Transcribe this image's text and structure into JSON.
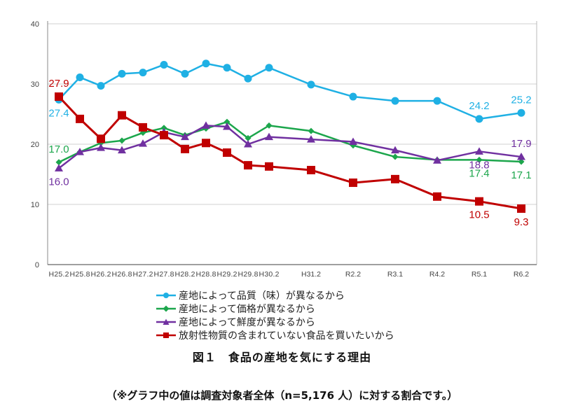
{
  "chart_data": {
    "type": "line",
    "categories": [
      "H25.2",
      "H25.8",
      "H26.2",
      "H26.8",
      "H27.2",
      "H27.8",
      "H28.2",
      "H28.8",
      "H29.2",
      "H29.8",
      "H30.2",
      "H31.2",
      "R2.2",
      "R3.1",
      "R4.2",
      "R5.1",
      "R6.2"
    ],
    "ylim": [
      0,
      40
    ],
    "yticks": [
      0,
      10,
      20,
      30,
      40
    ],
    "grid": true,
    "legend_position": "bottom",
    "series": [
      {
        "name": "産地によって品質（味）が異なるから",
        "color": "#1fb0e4",
        "marker": "circle",
        "values": [
          27.4,
          31.1,
          29.7,
          31.7,
          31.9,
          33.2,
          31.7,
          33.4,
          32.7,
          30.9,
          32.7,
          29.9,
          27.9,
          27.2,
          27.2,
          24.2,
          25.2
        ]
      },
      {
        "name": "産地によって価格が異なるから",
        "color": "#1ca64c",
        "marker": "diamond",
        "values": [
          17.0,
          18.7,
          20.2,
          20.6,
          21.9,
          22.7,
          21.5,
          22.6,
          23.7,
          21.0,
          23.1,
          22.2,
          19.8,
          17.9,
          17.4,
          17.4,
          17.1
        ]
      },
      {
        "name": "産地によって鮮度が異なるから",
        "color": "#7030a0",
        "marker": "triangle",
        "values": [
          16.0,
          18.7,
          19.4,
          19.0,
          20.1,
          22.0,
          21.2,
          23.1,
          22.9,
          20.0,
          21.2,
          20.8,
          20.4,
          19.0,
          17.3,
          18.8,
          17.9
        ]
      },
      {
        "name": "放射性物質の含まれていない食品を買いたいから",
        "color": "#c00000",
        "marker": "square",
        "values": [
          27.9,
          24.2,
          20.9,
          24.8,
          22.8,
          21.5,
          19.2,
          20.2,
          18.6,
          16.5,
          16.3,
          15.7,
          13.6,
          14.2,
          11.3,
          10.5,
          9.3
        ]
      }
    ],
    "data_labels": [
      {
        "series": 0,
        "point": 0,
        "text": "27.4",
        "placement": "below"
      },
      {
        "series": 3,
        "point": 0,
        "text": "27.9",
        "placement": "above"
      },
      {
        "series": 1,
        "point": 0,
        "text": "17.0",
        "placement": "above"
      },
      {
        "series": 2,
        "point": 0,
        "text": "16.0",
        "placement": "below"
      },
      {
        "series": 0,
        "point": 15,
        "text": "24.2",
        "placement": "above"
      },
      {
        "series": 2,
        "point": 15,
        "text": "18.8",
        "placement": "below"
      },
      {
        "series": 1,
        "point": 15,
        "text": "17.4",
        "placement": "below"
      },
      {
        "series": 3,
        "point": 15,
        "text": "10.5",
        "placement": "below"
      },
      {
        "series": 0,
        "point": 16,
        "text": "25.2",
        "placement": "above"
      },
      {
        "series": 2,
        "point": 16,
        "text": "17.9",
        "placement": "above"
      },
      {
        "series": 1,
        "point": 16,
        "text": "17.1",
        "placement": "below"
      },
      {
        "series": 3,
        "point": 16,
        "text": "9.3",
        "placement": "below"
      }
    ]
  },
  "caption": "図１　食品の産地を気にする理由",
  "note": "（※グラフ中の値は調査対象者全体（n=5,176 人）に対する割合です。）"
}
